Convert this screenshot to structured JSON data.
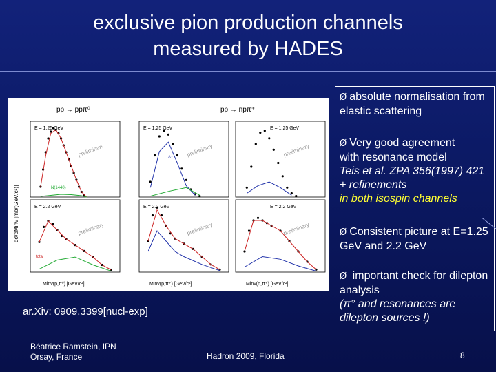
{
  "slide": {
    "title_line1": "exclusive pion production channels",
    "title_line2": "measured by HADES",
    "arxiv": "ar.Xiv: 0909.3399[nucl-exp]",
    "author_line1": "Béatrice Ramstein, IPN",
    "author_line2": "Orsay, France",
    "conference": "Hadron  2009, Florida",
    "page_number": "8"
  },
  "bullets": {
    "arrow": "Ø",
    "b1": "absolute normalisation from elastic scattering",
    "b2_line1": "Very good agreement",
    "b2_line2": " with resonance model",
    "b2_ref": "Teis et al. ZPA 356(1997) 421   + refinements",
    "b2_highlight": "in both isospin channels",
    "b3": "Consistent picture at E=1.25 GeV and 2.2 GeV",
    "b4_line1": " important check for dilepton analysis",
    "b4_line2": "(π° and resonances  are dilepton sources !)"
  },
  "figure": {
    "reaction_left": "pp → ppπ⁰",
    "reaction_right": "pp → npπ⁺",
    "energy_low": "E = 1.25 GeV",
    "energy_high": "E = 2.2 GeV",
    "watermark": "preliminary",
    "ylabel": "dσ/dMinv [mb/(GeV/c²)]",
    "xlabel_left": "Minv(p,π⁰) [GeV/c²]",
    "xlabel_mid": "Minv(p,π⁺) [GeV/c²]",
    "xlabel_right": "Minv(n,π⁺) [GeV/c²]",
    "label_total": "total",
    "label_delta": "Δ⁺",
    "label_n1440": "N(1440)",
    "colors": {
      "total": "#cc2222",
      "delta": "#2233aa",
      "n1440": "#22aa33",
      "other": "#cc33cc",
      "data": "#000000"
    }
  },
  "chart_data": [
    {
      "type": "scatter",
      "title": "pp → ppπ⁰  E = 1.25 GeV",
      "ylabel": "dσ/dMinv [mb/(GeV/c²)]",
      "xlim": [
        1.0,
        1.7
      ],
      "ylim": [
        0,
        2.2
      ],
      "series": [
        {
          "name": "data",
          "x": [
            1.08,
            1.1,
            1.12,
            1.14,
            1.16,
            1.18,
            1.2,
            1.22,
            1.24,
            1.26,
            1.28,
            1.3,
            1.32,
            1.34,
            1.36,
            1.38,
            1.4,
            1.42
          ],
          "y": [
            0.3,
            0.8,
            1.3,
            1.7,
            1.9,
            2.0,
            1.95,
            1.85,
            1.7,
            1.5,
            1.3,
            1.1,
            0.9,
            0.7,
            0.5,
            0.3,
            0.15,
            0.05
          ]
        },
        {
          "name": "total",
          "x": [
            1.08,
            1.12,
            1.16,
            1.2,
            1.24,
            1.28,
            1.32,
            1.36,
            1.4,
            1.44
          ],
          "y": [
            0.3,
            1.2,
            1.85,
            1.95,
            1.7,
            1.3,
            0.9,
            0.5,
            0.15,
            0.0
          ]
        },
        {
          "name": "N(1440)",
          "x": [
            1.08,
            1.16,
            1.24,
            1.32,
            1.4,
            1.44
          ],
          "y": [
            0.02,
            0.05,
            0.08,
            0.07,
            0.04,
            0.0
          ]
        }
      ]
    },
    {
      "type": "scatter",
      "title": "pp → npπ⁺  E = 1.25 GeV (p,π⁺)",
      "xlim": [
        1.0,
        1.8
      ],
      "ylim": [
        0,
        4
      ],
      "series": [
        {
          "name": "data",
          "x": [
            1.1,
            1.14,
            1.18,
            1.22,
            1.26,
            1.3,
            1.34,
            1.38,
            1.42,
            1.46,
            1.5,
            1.54
          ],
          "y": [
            0.8,
            2.2,
            3.2,
            3.5,
            3.3,
            2.8,
            2.2,
            1.5,
            0.9,
            0.4,
            0.15,
            0.05
          ]
        },
        {
          "name": "Δ⁺⁺",
          "x": [
            1.1,
            1.18,
            1.26,
            1.34,
            1.42,
            1.5
          ],
          "y": [
            0.5,
            2.4,
            2.9,
            1.8,
            0.6,
            0.1
          ]
        },
        {
          "name": "N(1440)",
          "x": [
            1.1,
            1.26,
            1.42,
            1.54
          ],
          "y": [
            0.05,
            0.3,
            0.5,
            0.1
          ]
        }
      ]
    },
    {
      "type": "scatter",
      "title": "pp → npπ⁺  E = 1.25 GeV (n,π⁺)",
      "xlim": [
        1.0,
        1.8
      ],
      "ylim": [
        0,
        4
      ],
      "series": [
        {
          "name": "data",
          "x": [
            1.1,
            1.14,
            1.18,
            1.22,
            1.26,
            1.3,
            1.34,
            1.38,
            1.42,
            1.46,
            1.5,
            1.54
          ],
          "y": [
            0.5,
            1.6,
            2.8,
            3.4,
            3.5,
            3.1,
            2.5,
            1.8,
            1.1,
            0.5,
            0.2,
            0.05
          ]
        },
        {
          "name": "Δ⁺",
          "x": [
            1.1,
            1.2,
            1.3,
            1.4,
            1.5
          ],
          "y": [
            0.2,
            0.6,
            0.8,
            0.5,
            0.1
          ]
        }
      ]
    },
    {
      "type": "scatter",
      "title": "pp → ppπ⁰  E = 2.2 GeV",
      "xlim": [
        1.0,
        2.0
      ],
      "ylim": [
        0,
        1.2
      ],
      "series": [
        {
          "name": "data",
          "x": [
            1.1,
            1.15,
            1.2,
            1.25,
            1.3,
            1.35,
            1.4,
            1.5,
            1.6,
            1.7,
            1.8,
            1.9
          ],
          "y": [
            0.5,
            0.75,
            0.85,
            0.8,
            0.7,
            0.6,
            0.55,
            0.45,
            0.35,
            0.25,
            0.12,
            0.04
          ]
        },
        {
          "name": "total",
          "x": [
            1.1,
            1.2,
            1.3,
            1.4,
            1.5,
            1.6,
            1.7,
            1.8,
            1.9
          ],
          "y": [
            0.5,
            0.85,
            0.7,
            0.55,
            0.45,
            0.35,
            0.25,
            0.12,
            0.04
          ]
        },
        {
          "name": "N(1440)",
          "x": [
            1.1,
            1.3,
            1.5,
            1.7,
            1.9
          ],
          "y": [
            0.05,
            0.2,
            0.25,
            0.12,
            0.02
          ]
        }
      ]
    },
    {
      "type": "scatter",
      "title": "pp → npπ⁺  E = 2.2 GeV (p,π⁺)",
      "xlim": [
        1.0,
        2.0
      ],
      "ylim": [
        0,
        1.4
      ],
      "series": [
        {
          "name": "data",
          "x": [
            1.1,
            1.15,
            1.2,
            1.25,
            1.3,
            1.35,
            1.4,
            1.5,
            1.6,
            1.7,
            1.8,
            1.9
          ],
          "y": [
            0.6,
            1.1,
            1.25,
            1.1,
            0.9,
            0.75,
            0.65,
            0.55,
            0.45,
            0.3,
            0.15,
            0.05
          ]
        },
        {
          "name": "total",
          "x": [
            1.1,
            1.2,
            1.3,
            1.4,
            1.5,
            1.6,
            1.7,
            1.8,
            1.9
          ],
          "y": [
            0.6,
            1.2,
            0.9,
            0.65,
            0.55,
            0.45,
            0.3,
            0.15,
            0.05
          ]
        },
        {
          "name": "Δ⁺⁺",
          "x": [
            1.1,
            1.2,
            1.3,
            1.4,
            1.5,
            1.7,
            1.9
          ],
          "y": [
            0.4,
            0.8,
            0.6,
            0.4,
            0.3,
            0.15,
            0.03
          ]
        }
      ]
    },
    {
      "type": "scatter",
      "title": "pp → npπ⁺  E = 2.2 GeV (n,π⁺)",
      "xlim": [
        1.0,
        2.0
      ],
      "ylim": [
        0,
        1.4
      ],
      "series": [
        {
          "name": "data",
          "x": [
            1.1,
            1.15,
            1.2,
            1.25,
            1.3,
            1.35,
            1.4,
            1.5,
            1.6,
            1.7,
            1.8,
            1.9
          ],
          "y": [
            0.4,
            0.8,
            1.0,
            1.05,
            1.0,
            0.95,
            0.9,
            0.8,
            0.6,
            0.4,
            0.2,
            0.05
          ]
        },
        {
          "name": "total",
          "x": [
            1.1,
            1.2,
            1.3,
            1.4,
            1.5,
            1.6,
            1.7,
            1.8,
            1.9
          ],
          "y": [
            0.4,
            1.0,
            1.0,
            0.9,
            0.8,
            0.6,
            0.4,
            0.2,
            0.05
          ]
        },
        {
          "name": "Δ⁺",
          "x": [
            1.1,
            1.3,
            1.5,
            1.7,
            1.9
          ],
          "y": [
            0.1,
            0.3,
            0.25,
            0.12,
            0.02
          ]
        }
      ]
    }
  ]
}
